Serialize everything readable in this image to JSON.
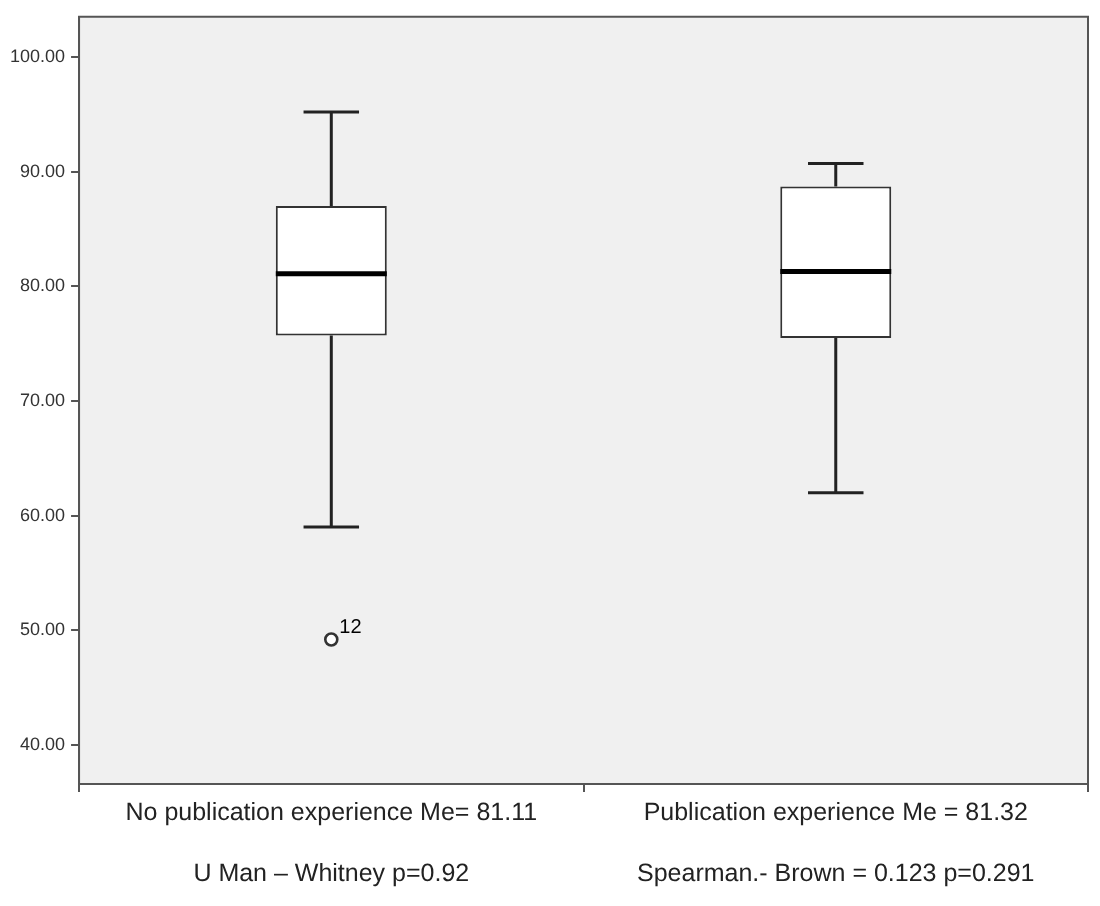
{
  "chart_data": {
    "type": "box",
    "categories": [
      "No publication experience Me= 81.11",
      "Publication experience Me = 81.32"
    ],
    "boxes": [
      {
        "low": 59.0,
        "q1": 75.7,
        "median": 81.1,
        "q3": 87.0,
        "high": 95.2,
        "outliers": [
          49.2
        ]
      },
      {
        "low": 62.0,
        "q1": 75.5,
        "median": 81.3,
        "q3": 88.7,
        "high": 90.7
      }
    ],
    "ylim": [
      36.6,
      103.5
    ],
    "yticks": [
      {
        "value": 40,
        "label": "40.00"
      },
      {
        "value": 50,
        "label": "50.00"
      },
      {
        "value": 60,
        "label": "60.00"
      },
      {
        "value": 70,
        "label": "70.00"
      },
      {
        "value": 80,
        "label": "80.00"
      },
      {
        "value": 90,
        "label": "90.00"
      },
      {
        "value": 100,
        "label": "100.00"
      }
    ],
    "grid": false,
    "annotations": [
      "U Man – Whitney p=0.92",
      "Spearman.- Brown = 0.123 p=0.291",
      "12"
    ]
  }
}
